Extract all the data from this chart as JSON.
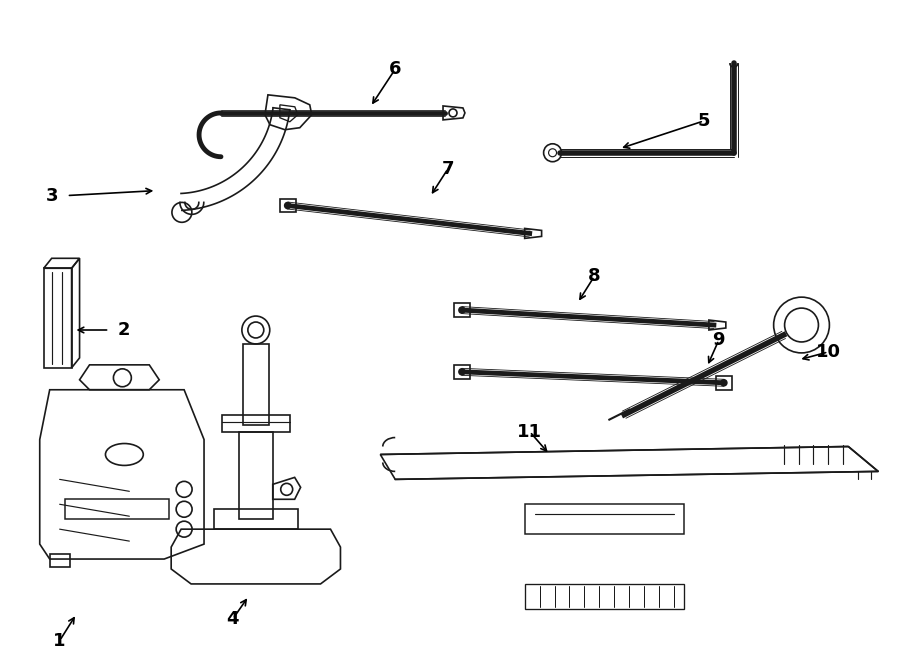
{
  "bg": "#ffffff",
  "lc": "#1a1a1a",
  "lw": 1.2,
  "fig_w": 9.0,
  "fig_h": 6.61,
  "dpi": 100
}
